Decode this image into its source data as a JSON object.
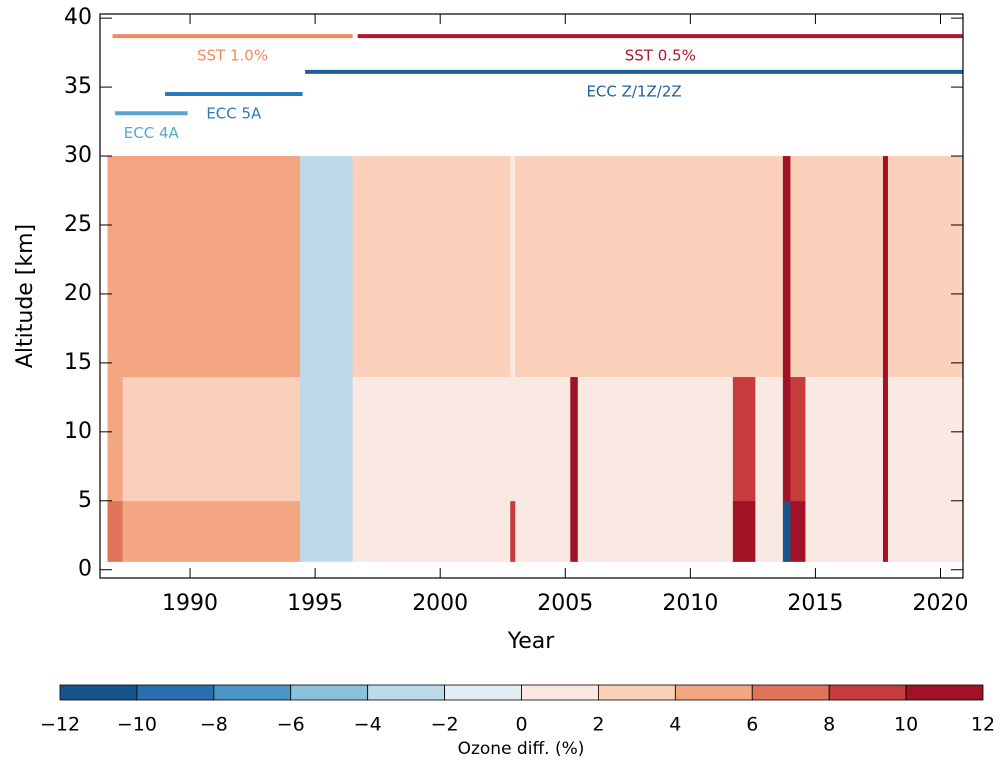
{
  "chart_data": {
    "type": "heatmap",
    "xlabel": "Year",
    "ylabel": "Altitude [km]",
    "xlim": [
      1986.4,
      2020.9
    ],
    "ylim": [
      -0.6,
      40.3
    ],
    "xticks": [
      1990,
      1995,
      2000,
      2005,
      2010,
      2015,
      2020
    ],
    "yticks": [
      0,
      5,
      10,
      15,
      20,
      25,
      30,
      35,
      40
    ],
    "x_edges": [
      1986.7,
      1987.3,
      1990,
      1994.4,
      1996.5,
      2002.8,
      2003.0,
      2005.2,
      2005.5,
      2011.7,
      2012.6,
      2013.7,
      2014.0,
      2014.6,
      2017.7,
      2017.9,
      2020.9
    ],
    "y_edges": [
      0.6,
      5,
      14,
      30
    ],
    "z": [
      [
        7,
        4.5,
        4.5,
        -3,
        1,
        9,
        1,
        11,
        1,
        10,
        1,
        -11,
        10,
        1,
        10,
        1
      ],
      [
        5,
        3.5,
        3.5,
        -3,
        1,
        1,
        1,
        11,
        1,
        9,
        1,
        10,
        9,
        1,
        10,
        1
      ],
      [
        5,
        5,
        5,
        -3,
        2.5,
        1,
        2.5,
        2.5,
        2.5,
        3,
        2.5,
        10,
        3,
        2.5,
        10,
        2.5
      ]
    ],
    "instruments": [
      {
        "name": "SST 1.0%",
        "start": 1986.9,
        "end": 1996.5,
        "y": 38.7,
        "color": "#ef8a62"
      },
      {
        "name": "SST 0.5%",
        "start": 1996.7,
        "end": 2020.9,
        "y": 38.7,
        "color": "#b2182b"
      },
      {
        "name": "ECC Z/1Z/2Z",
        "start": 1994.6,
        "end": 2020.9,
        "y": 36.1,
        "color": "#1f5f9a"
      },
      {
        "name": "ECC 5A",
        "start": 1989.0,
        "end": 1994.5,
        "y": 34.5,
        "color": "#2c7bb6"
      },
      {
        "name": "ECC 4A",
        "start": 1987.0,
        "end": 1989.9,
        "y": 33.1,
        "color": "#5aa5cf"
      }
    ],
    "colorbar": {
      "label": "Ozone diff. (%)",
      "levels": [
        {
          "value": -12,
          "label": "−12"
        },
        {
          "value": -10,
          "label": "−10"
        },
        {
          "value": -8,
          "label": "−8"
        },
        {
          "value": -6,
          "label": "−6"
        },
        {
          "value": -4,
          "label": "−4"
        },
        {
          "value": -2,
          "label": "−2"
        },
        0,
        2,
        4,
        6,
        8,
        10,
        12
      ],
      "colors": [
        "#17538c",
        "#2a70b0",
        "#4b96c8",
        "#8cc0dc",
        "#bcdaea",
        "#e2edf3",
        "#f9e9e2",
        "#fbd0bb",
        "#f4a683",
        "#e07458",
        "#c63c3c",
        "#a11226"
      ]
    }
  }
}
